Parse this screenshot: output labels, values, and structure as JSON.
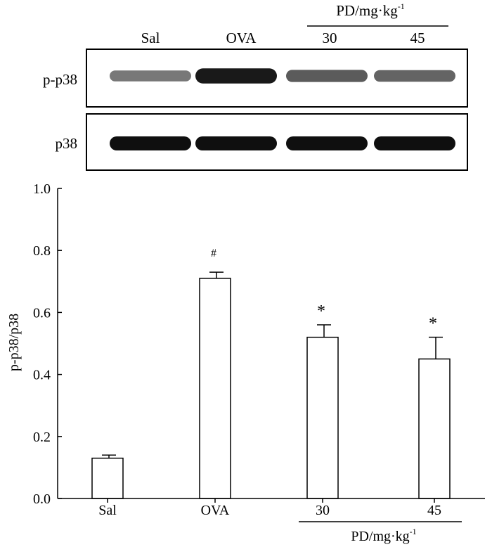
{
  "blot": {
    "header_group_label": "PD/mg·kg",
    "header_group_superscript": "-1",
    "lane_labels": [
      "Sal",
      "OVA",
      "30",
      "45"
    ],
    "rows": [
      {
        "label": "p-p38",
        "band_intensity": [
          0.45,
          0.95,
          0.6,
          0.55
        ]
      },
      {
        "label": "p38",
        "band_intensity": [
          1.0,
          1.0,
          1.0,
          1.0
        ]
      }
    ]
  },
  "chart_data": {
    "type": "bar",
    "categories": [
      "Sal",
      "OVA",
      "30",
      "45"
    ],
    "values": [
      0.13,
      0.71,
      0.52,
      0.45
    ],
    "errors": [
      0.01,
      0.02,
      0.04,
      0.07
    ],
    "annotations": [
      "",
      "#",
      "*",
      "*"
    ],
    "ylabel": "p-p38/p38",
    "xlabel": "",
    "group_label": "PD/mg·kg",
    "group_label_superscript": "-1",
    "ylim": [
      0.0,
      1.0
    ],
    "yticks": [
      "0.0",
      "0.2",
      "0.4",
      "0.6",
      "0.8",
      "1.0"
    ],
    "grid": false,
    "legend": "none",
    "bar_fill": "#ffffff",
    "bar_stroke": "#000000"
  }
}
